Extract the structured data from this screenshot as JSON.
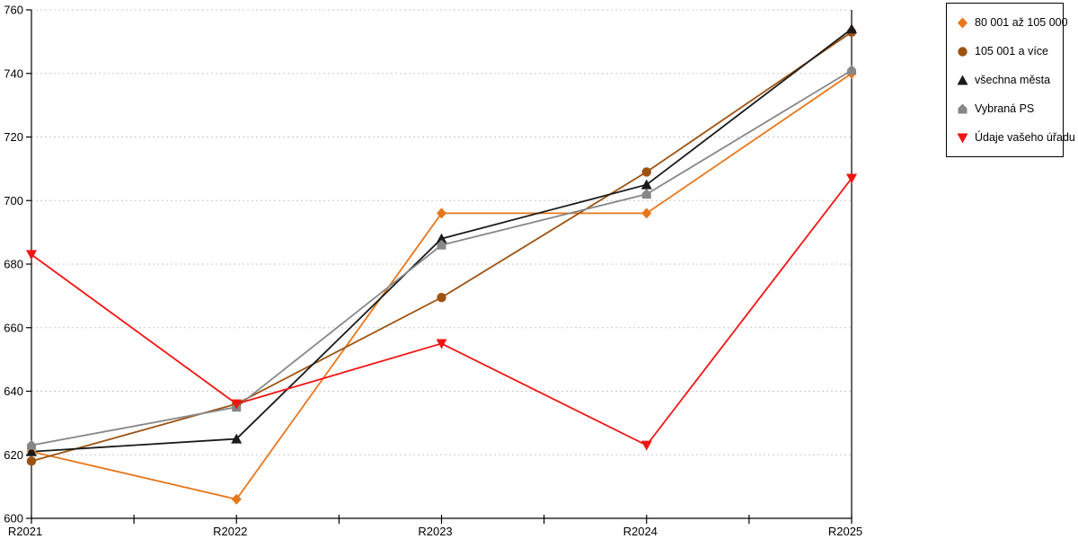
{
  "chart_data": {
    "type": "line",
    "x": [
      "R2021",
      "R2022",
      "R2023",
      "R2024",
      "R2025"
    ],
    "ylim": [
      600,
      760
    ],
    "yticks": [
      600,
      620,
      640,
      660,
      680,
      700,
      720,
      740,
      760
    ],
    "grid": "horizontal-dashed",
    "grid_color": "#c9c9c9",
    "axis_color": "#000000",
    "legend_position": "top-right",
    "series": [
      {
        "name": "80 001 až 105 000",
        "marker": "diamond",
        "color": "#e8761b",
        "values": [
          621,
          606,
          696,
          696,
          740
        ]
      },
      {
        "name": "105 001 a více",
        "marker": "circle",
        "color": "#9c5310",
        "values": [
          618,
          636,
          669.5,
          709,
          753
        ]
      },
      {
        "name": "všechna města",
        "marker": "triangle-up",
        "color": "#1a1a1a",
        "values": [
          621,
          625,
          688,
          705,
          754
        ]
      },
      {
        "name": "Vybraná PS",
        "marker": "pentagon",
        "color": "#878787",
        "values": [
          623,
          635,
          686,
          702,
          741
        ]
      },
      {
        "name": "Údaje vašeho úřadu",
        "marker": "triangle-down",
        "color": "#f21414",
        "values": [
          683,
          636,
          655,
          623,
          707
        ]
      }
    ]
  },
  "legend": {
    "items": [
      {
        "label": "80 001 až 105 000",
        "icon": "diamond-icon"
      },
      {
        "label": "105 001 a více",
        "icon": "circle-icon"
      },
      {
        "label": "všechna města",
        "icon": "triangle-up-icon"
      },
      {
        "label": "Vybraná PS",
        "icon": "pentagon-icon"
      },
      {
        "label": "Údaje vašeho úřadu",
        "icon": "triangle-down-icon"
      }
    ]
  }
}
